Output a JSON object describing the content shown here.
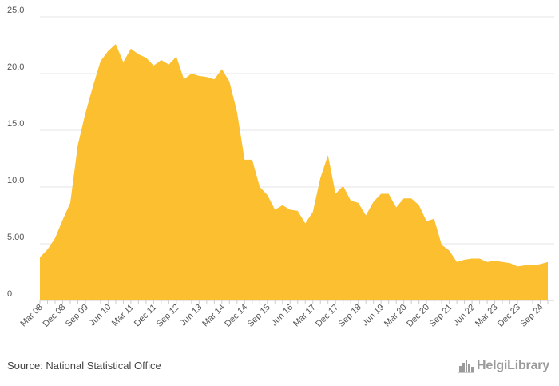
{
  "chart_data": {
    "type": "area",
    "title": "",
    "xlabel": "",
    "ylabel": "",
    "ylim": [
      0,
      25
    ],
    "yticks": [
      "0",
      "5.00",
      "10.0",
      "15.0",
      "20.0",
      "25.0"
    ],
    "ytick_values": [
      0,
      5,
      10,
      15,
      20,
      25
    ],
    "grid": true,
    "legend": "none",
    "series": [
      {
        "name": "Value",
        "color": "#fbbf30",
        "x": [
          "Mar 08",
          "Jun 08",
          "Sep 08",
          "Dec 08",
          "Mar 09",
          "Jun 09",
          "Sep 09",
          "Dec 09",
          "Mar 10",
          "Jun 10",
          "Sep 10",
          "Dec 10",
          "Mar 11",
          "Jun 11",
          "Sep 11",
          "Dec 11",
          "Mar 12",
          "Jun 12",
          "Sep 12",
          "Dec 12",
          "Mar 13",
          "Jun 13",
          "Sep 13",
          "Dec 13",
          "Mar 14",
          "Jun 14",
          "Sep 14",
          "Dec 14",
          "Mar 15",
          "Jun 15",
          "Sep 15",
          "Dec 15",
          "Mar 16",
          "Jun 16",
          "Sep 16",
          "Dec 16",
          "Mar 17",
          "Jun 17",
          "Sep 17",
          "Dec 17",
          "Mar 18",
          "Jun 18",
          "Sep 18",
          "Dec 18",
          "Mar 19",
          "Jun 19",
          "Sep 19",
          "Dec 19",
          "Mar 20",
          "Jun 20",
          "Sep 20",
          "Dec 20",
          "Mar 21",
          "Jun 21",
          "Sep 21",
          "Dec 21",
          "Mar 22",
          "Jun 22",
          "Sep 22",
          "Dec 22",
          "Mar 23",
          "Jun 23",
          "Sep 23",
          "Dec 23",
          "Mar 24",
          "Jun 24",
          "Sep 24",
          "Dec 24"
        ],
        "values": [
          3.8,
          4.5,
          5.5,
          7.1,
          8.6,
          13.7,
          16.5,
          18.9,
          21.1,
          22.0,
          22.6,
          21.0,
          22.2,
          21.7,
          21.4,
          20.7,
          21.2,
          20.8,
          21.5,
          19.5,
          20.0,
          19.8,
          19.7,
          19.5,
          20.4,
          19.3,
          16.6,
          12.4,
          12.4,
          10.0,
          9.3,
          8.0,
          8.4,
          8.0,
          7.9,
          6.8,
          7.8,
          10.8,
          12.8,
          9.4,
          10.1,
          8.8,
          8.6,
          7.5,
          8.7,
          9.4,
          9.4,
          8.2,
          9.0,
          9.0,
          8.4,
          7.0,
          7.2,
          4.9,
          4.4,
          3.4,
          3.6,
          3.7,
          3.7,
          3.4,
          3.5,
          3.4,
          3.3,
          3.0,
          3.1,
          3.1,
          3.2,
          3.4
        ]
      }
    ],
    "x_tick_labels": [
      "Mar 08",
      "Dec 08",
      "Sep 09",
      "Jun 10",
      "Mar 11",
      "Dec 11",
      "Sep 12",
      "Jun 13",
      "Mar 14",
      "Dec 14",
      "Sep 15",
      "Jun 16",
      "Mar 17",
      "Dec 17",
      "Sep 18",
      "Jun 19",
      "Mar 20",
      "Dec 20",
      "Sep 21",
      "Jun 22",
      "Mar 23",
      "Dec 23",
      "Sep 24"
    ]
  },
  "footer": {
    "source": "Source: National Statistical Office",
    "brand": "HelgiLibrary"
  },
  "colors": {
    "area": "#fbbf30",
    "grid": "#e6e6e6",
    "axis": "#cccccc",
    "label": "#555555",
    "brand": "#9a9a9a"
  },
  "icons": {
    "brand": "city-skyline-icon"
  }
}
